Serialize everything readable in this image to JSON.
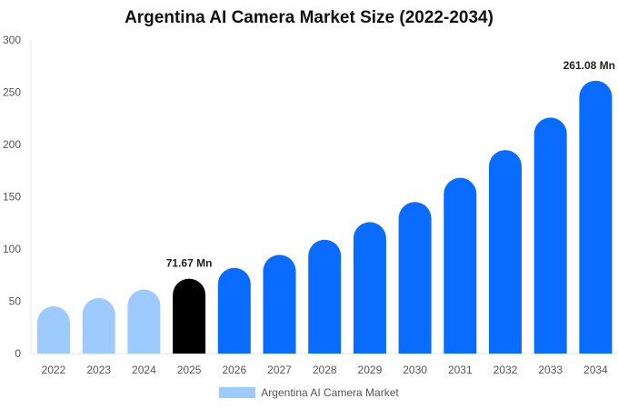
{
  "chart_data": {
    "type": "bar",
    "title": "Argentina AI Camera Market Size (2022-2034)",
    "xlabel": "",
    "ylabel": "",
    "categories": [
      "2022",
      "2023",
      "2024",
      "2025",
      "2026",
      "2027",
      "2028",
      "2029",
      "2030",
      "2031",
      "2032",
      "2033",
      "2034"
    ],
    "series": [
      {
        "name": "Argentina AI Camera Market",
        "values": [
          45.2,
          53.1,
          61.3,
          71.67,
          82.0,
          94.5,
          108.9,
          125.8,
          145.0,
          168.2,
          194.7,
          225.8,
          261.08
        ]
      }
    ],
    "ylim": [
      0,
      300
    ],
    "yticks": [
      0,
      50,
      100,
      150,
      200,
      250,
      300
    ],
    "data_labels": [
      {
        "index": 3,
        "text": "71.67 Mn"
      },
      {
        "index": 12,
        "text": "261.08 Mn"
      }
    ],
    "colors": {
      "historical": "#9ecbff",
      "current": "#000000",
      "forecast": "#0a6cff",
      "legend": "#9ecbff"
    },
    "grid": false,
    "legend_position": "bottom-center"
  }
}
